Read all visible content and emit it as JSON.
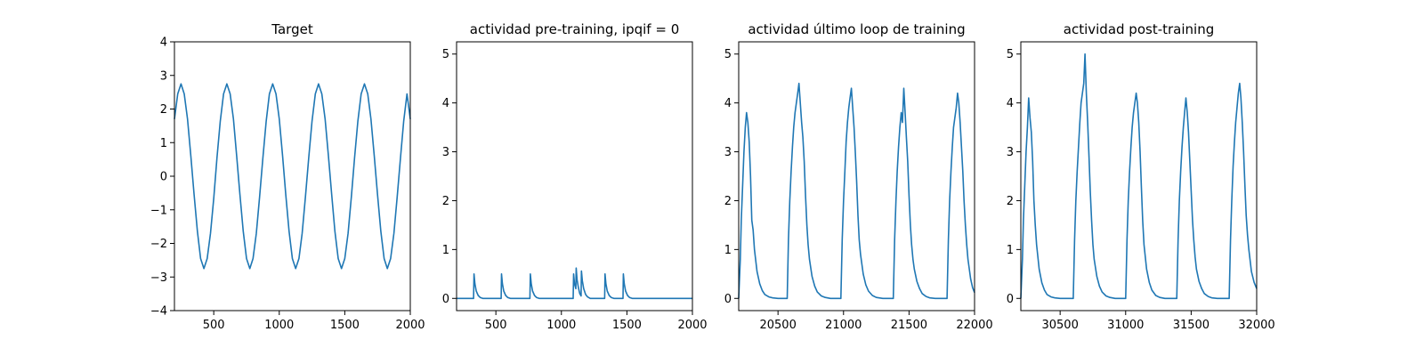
{
  "chart_data": [
    {
      "type": "line",
      "title": "Target",
      "xlim": [
        200,
        2000
      ],
      "ylim": [
        -4,
        4
      ],
      "xticks": [
        500,
        1000,
        1500,
        2000
      ],
      "xtick_labels": [
        "500",
        "1000",
        "1500",
        "2000"
      ],
      "yticks": [
        -4,
        -3,
        -2,
        -1,
        0,
        1,
        2,
        3,
        4
      ],
      "ytick_labels": [
        "−4",
        "−3",
        "−2",
        "−1",
        "0",
        "1",
        "2",
        "3",
        "4"
      ],
      "series": [
        {
          "color": "#1f77b4",
          "x": [
            200,
            225,
            250,
            275,
            300,
            325,
            350,
            375,
            400,
            425,
            450,
            475,
            500,
            525,
            550,
            575,
            600,
            625,
            650,
            675,
            700,
            725,
            750,
            775,
            800,
            825,
            850,
            875,
            900,
            925,
            950,
            975,
            1000,
            1025,
            1050,
            1075,
            1100,
            1125,
            1150,
            1175,
            1200,
            1225,
            1250,
            1275,
            1300,
            1325,
            1350,
            1375,
            1400,
            1425,
            1450,
            1475,
            1500,
            1525,
            1550,
            1575,
            1600,
            1625,
            1650,
            1675,
            1700,
            1725,
            1750,
            1775,
            1800,
            1825,
            1850,
            1875,
            1900,
            1925,
            1950,
            1975,
            2000
          ],
          "y": [
            1.7,
            2.45,
            2.75,
            2.45,
            1.7,
            0.61,
            -0.55,
            -1.64,
            -2.45,
            -2.75,
            -2.45,
            -1.7,
            -0.65,
            0.55,
            1.64,
            2.45,
            2.75,
            2.45,
            1.7,
            0.61,
            -0.55,
            -1.64,
            -2.45,
            -2.75,
            -2.45,
            -1.7,
            -0.61,
            0.55,
            1.64,
            2.45,
            2.75,
            2.45,
            1.7,
            0.61,
            -0.55,
            -1.64,
            -2.45,
            -2.75,
            -2.45,
            -1.7,
            -0.61,
            0.55,
            1.64,
            2.45,
            2.75,
            2.45,
            1.7,
            0.61,
            -0.55,
            -1.64,
            -2.45,
            -2.75,
            -2.45,
            -1.7,
            -0.61,
            0.55,
            1.64,
            2.45,
            2.75,
            2.45,
            1.7,
            0.61,
            -0.55,
            -1.64,
            -2.45,
            -2.75,
            -2.45,
            -1.7,
            -0.61,
            0.55,
            1.64,
            2.45,
            1.7
          ]
        }
      ]
    },
    {
      "type": "line",
      "title": "actividad pre-training, ipqif = 0",
      "xlim": [
        200,
        2000
      ],
      "ylim": [
        -0.25,
        5.25
      ],
      "xticks": [
        500,
        1000,
        1500,
        2000
      ],
      "xtick_labels": [
        "500",
        "1000",
        "1500",
        "2000"
      ],
      "yticks": [
        0,
        1,
        2,
        3,
        4,
        5
      ],
      "ytick_labels": [
        "0",
        "1",
        "2",
        "3",
        "4",
        "5"
      ],
      "series": [
        {
          "color": "#1f77b4",
          "x": [
            200,
            330,
            333,
            340,
            350,
            365,
            380,
            400,
            540,
            543,
            550,
            560,
            575,
            590,
            610,
            760,
            763,
            770,
            780,
            795,
            810,
            830,
            1090,
            1093,
            1100,
            1110,
            1113,
            1120,
            1130,
            1140,
            1150,
            1153,
            1160,
            1170,
            1185,
            1200,
            1220,
            1330,
            1333,
            1340,
            1350,
            1365,
            1380,
            1400,
            1470,
            1473,
            1480,
            1490,
            1505,
            1520,
            1540,
            2000
          ],
          "y": [
            0,
            0,
            0.5,
            0.3,
            0.15,
            0.06,
            0.02,
            0,
            0,
            0.5,
            0.3,
            0.15,
            0.06,
            0.02,
            0,
            0,
            0.5,
            0.3,
            0.15,
            0.06,
            0.02,
            0,
            0,
            0.5,
            0.3,
            0.2,
            0.62,
            0.38,
            0.22,
            0.1,
            0.05,
            0.56,
            0.36,
            0.2,
            0.08,
            0.03,
            0,
            0,
            0.5,
            0.3,
            0.15,
            0.06,
            0.02,
            0,
            0,
            0.5,
            0.3,
            0.15,
            0.06,
            0.02,
            0,
            0
          ]
        }
      ]
    },
    {
      "type": "line",
      "title": "actividad último loop de training",
      "xlim": [
        20200,
        22000
      ],
      "ylim": [
        -0.25,
        5.25
      ],
      "xticks": [
        20500,
        21000,
        21500,
        22000
      ],
      "xtick_labels": [
        "20500",
        "21000",
        "21500",
        "22000"
      ],
      "yticks": [
        0,
        1,
        2,
        3,
        4,
        5
      ],
      "ytick_labels": [
        "0",
        "1",
        "2",
        "3",
        "4",
        "5"
      ],
      "series": [
        {
          "color": "#1f77b4",
          "x": [
            20200,
            20212,
            20220,
            20230,
            20240,
            20250,
            20260,
            20270,
            20280,
            20290,
            20300,
            20310,
            20320,
            20340,
            20360,
            20380,
            20400,
            20430,
            20460,
            20500,
            20570,
            20580,
            20590,
            20600,
            20610,
            20620,
            20630,
            20640,
            20650,
            20660,
            20670,
            20680,
            20690,
            20700,
            20710,
            20720,
            20730,
            20740,
            20760,
            20780,
            20800,
            20830,
            20860,
            20900,
            20980,
            20990,
            21000,
            21010,
            21020,
            21030,
            21040,
            21050,
            21060,
            21070,
            21080,
            21090,
            21100,
            21110,
            21120,
            21130,
            21150,
            21170,
            21190,
            21220,
            21250,
            21300,
            21380,
            21390,
            21400,
            21410,
            21420,
            21430,
            21440,
            21450,
            21460,
            21470,
            21480,
            21490,
            21500,
            21510,
            21520,
            21530,
            21540,
            21560,
            21580,
            21600,
            21630,
            21660,
            21700,
            21790,
            21800,
            21810,
            21820,
            21830,
            21840,
            21850,
            21860,
            21870,
            21880,
            21890,
            21900,
            21910,
            21920,
            21930,
            21940,
            21950,
            21970,
            21985,
            22000
          ],
          "y": [
            0,
            0.8,
            1.6,
            2.3,
            3.0,
            3.5,
            3.8,
            3.6,
            3.2,
            2.5,
            1.6,
            1.4,
            1.0,
            0.55,
            0.3,
            0.16,
            0.08,
            0.03,
            0.01,
            0,
            0,
            1.2,
            2.0,
            2.6,
            3.1,
            3.5,
            3.8,
            4.0,
            4.2,
            4.4,
            4.0,
            3.6,
            3.3,
            2.8,
            2.1,
            1.5,
            1.1,
            0.8,
            0.45,
            0.25,
            0.13,
            0.05,
            0.02,
            0,
            0,
            1.2,
            2.0,
            2.6,
            3.2,
            3.6,
            3.9,
            4.1,
            4.3,
            3.9,
            3.5,
            3.0,
            2.4,
            1.7,
            1.2,
            0.9,
            0.5,
            0.28,
            0.15,
            0.06,
            0.02,
            0,
            0,
            1.2,
            2.0,
            2.6,
            3.1,
            3.5,
            3.8,
            3.6,
            4.3,
            3.8,
            3.3,
            2.8,
            2.1,
            1.5,
            1.1,
            0.8,
            0.6,
            0.35,
            0.2,
            0.1,
            0.04,
            0.01,
            0,
            0,
            1.2,
            2.0,
            2.6,
            3.1,
            3.5,
            3.7,
            3.9,
            4.2,
            4.0,
            3.6,
            3.1,
            2.6,
            2.0,
            1.5,
            1.1,
            0.8,
            0.4,
            0.22,
            0.12
          ]
        }
      ]
    },
    {
      "type": "line",
      "title": "actividad post-training",
      "xlim": [
        30200,
        32000
      ],
      "ylim": [
        -0.25,
        5.25
      ],
      "xticks": [
        30500,
        31000,
        31500,
        32000
      ],
      "xtick_labels": [
        "30500",
        "31000",
        "31500",
        "32000"
      ],
      "yticks": [
        0,
        1,
        2,
        3,
        4,
        5
      ],
      "ytick_labels": [
        "0",
        "1",
        "2",
        "3",
        "4",
        "5"
      ],
      "series": [
        {
          "color": "#1f77b4",
          "x": [
            30200,
            30212,
            30220,
            30230,
            30240,
            30250,
            30260,
            30270,
            30280,
            30290,
            30300,
            30310,
            30320,
            30340,
            30360,
            30380,
            30400,
            30430,
            30460,
            30500,
            30600,
            30610,
            30620,
            30630,
            30640,
            30650,
            30660,
            30670,
            30680,
            30690,
            30700,
            30710,
            30720,
            30730,
            30740,
            30750,
            30760,
            30780,
            30800,
            30820,
            30850,
            30880,
            30920,
            31000,
            31010,
            31020,
            31030,
            31040,
            31050,
            31060,
            31070,
            31080,
            31090,
            31100,
            31110,
            31120,
            31130,
            31140,
            31160,
            31180,
            31200,
            31230,
            31260,
            31300,
            31390,
            31400,
            31410,
            31420,
            31430,
            31440,
            31450,
            31460,
            31470,
            31480,
            31490,
            31500,
            31510,
            31520,
            31530,
            31540,
            31560,
            31580,
            31600,
            31630,
            31660,
            31700,
            31790,
            31800,
            31810,
            31820,
            31830,
            31840,
            31850,
            31860,
            31870,
            31880,
            31890,
            31900,
            31910,
            31920,
            31930,
            31940,
            31960,
            31980,
            32000
          ],
          "y": [
            0,
            0.8,
            1.6,
            2.3,
            3.0,
            3.5,
            4.1,
            3.7,
            3.4,
            2.8,
            2.0,
            1.5,
            1.1,
            0.6,
            0.32,
            0.17,
            0.08,
            0.03,
            0.01,
            0,
            0,
            1.2,
            2.0,
            2.6,
            3.1,
            3.6,
            4.0,
            4.2,
            4.4,
            5.0,
            4.2,
            3.6,
            2.9,
            2.2,
            1.6,
            1.1,
            0.8,
            0.45,
            0.25,
            0.13,
            0.05,
            0.02,
            0,
            0,
            1.2,
            2.0,
            2.6,
            3.1,
            3.5,
            3.8,
            4.0,
            4.2,
            4.0,
            3.6,
            3.0,
            2.3,
            1.6,
            1.1,
            0.6,
            0.33,
            0.17,
            0.06,
            0.02,
            0,
            0,
            1.2,
            2.0,
            2.6,
            3.1,
            3.5,
            3.8,
            4.1,
            3.8,
            3.4,
            2.8,
            2.2,
            1.6,
            1.2,
            0.85,
            0.6,
            0.35,
            0.2,
            0.1,
            0.04,
            0.01,
            0,
            0,
            1.2,
            2.0,
            2.7,
            3.2,
            3.6,
            3.9,
            4.2,
            4.4,
            4.1,
            3.6,
            3.0,
            2.3,
            1.7,
            1.3,
            1.0,
            0.55,
            0.33,
            0.2
          ]
        }
      ]
    }
  ]
}
